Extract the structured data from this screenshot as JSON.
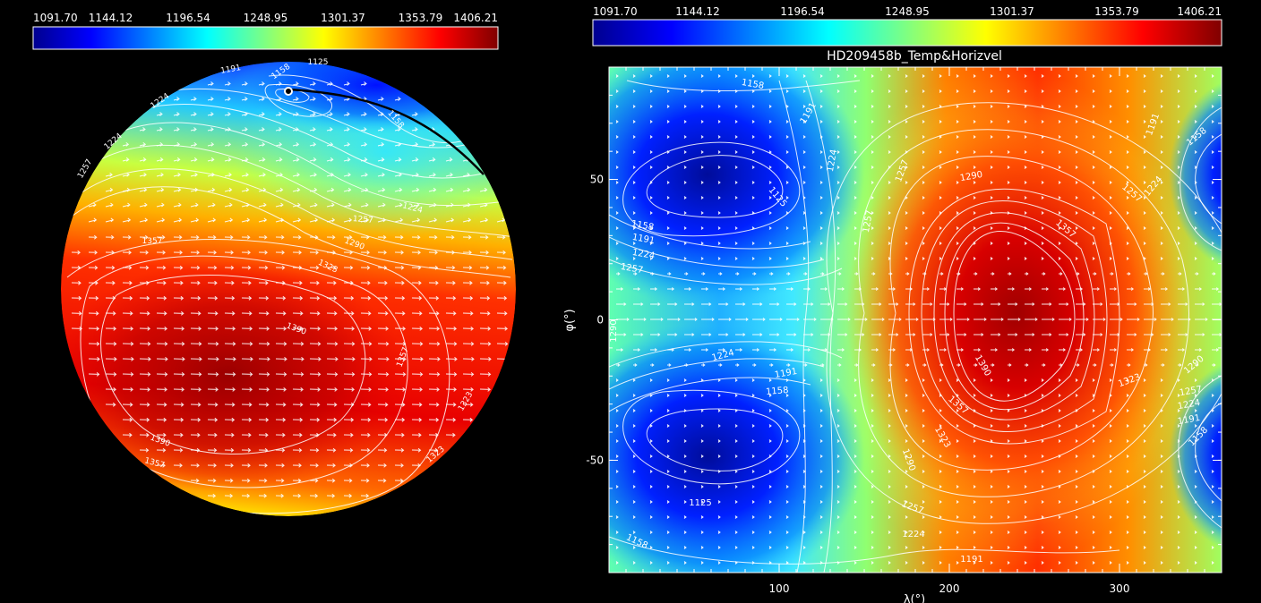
{
  "colorbar_ticks": [
    "1091.70",
    "1144.12",
    "1196.54",
    "1248.95",
    "1301.37",
    "1353.79",
    "1406.21"
  ],
  "map": {
    "title": "HD209458b_Temp&Horizvel",
    "ylabel": "φ(°)",
    "xlabel": "λ(°)"
  },
  "chart_data": [
    {
      "type": "heatmap",
      "name": "colorbar-left",
      "range": [
        1091.7,
        1406.21
      ],
      "ticks": [
        1091.7,
        1144.12,
        1196.54,
        1248.95,
        1301.37,
        1353.79,
        1406.21
      ]
    },
    {
      "type": "heatmap",
      "name": "orthographic-globe",
      "contour_labels": [
        1125,
        1158,
        1191,
        1224,
        1257,
        1290,
        1323,
        1357,
        1390
      ]
    },
    {
      "type": "heatmap",
      "name": "colorbar-right",
      "range": [
        1091.7,
        1406.21
      ],
      "ticks": [
        1091.7,
        1144.12,
        1196.54,
        1248.95,
        1301.37,
        1353.79,
        1406.21
      ]
    },
    {
      "type": "heatmap",
      "name": "lon-lat-map",
      "title": "HD209458b_Temp&Horizvel",
      "xlabel": "λ(°)",
      "ylabel": "φ(°)",
      "xlim": [
        0,
        360
      ],
      "ylim": [
        -90,
        90
      ],
      "xticks": [
        100,
        200,
        300
      ],
      "yticks": [
        -50,
        0,
        50
      ],
      "contour_labels": [
        1125,
        1158,
        1191,
        1224,
        1257,
        1290,
        1323,
        1357,
        1390
      ]
    }
  ]
}
